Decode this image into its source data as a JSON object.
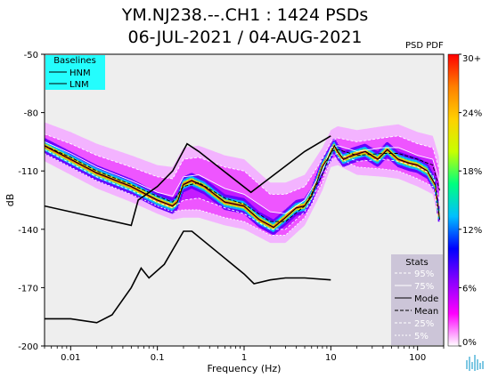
{
  "figure": {
    "title_line1": "YM.NJ238.--.CH1 : 1424 PSDs",
    "title_line2": "06-JUL-2021 / 04-AUG-2021",
    "colorbar_title": "PSD PDF"
  },
  "chart_data": {
    "type": "heatmap",
    "xlabel": "Frequency (Hz)",
    "ylabel": "dB",
    "x_scale": "log",
    "xlim": [
      0.005,
      200
    ],
    "ylim": [
      -200,
      -50
    ],
    "x_ticks": [
      {
        "value": 0.01,
        "label": "0.01"
      },
      {
        "value": 0.1,
        "label": "0.1"
      },
      {
        "value": 1,
        "label": "1"
      },
      {
        "value": 10,
        "label": "10"
      },
      {
        "value": 100,
        "label": "100"
      }
    ],
    "y_ticks": [
      {
        "value": -50,
        "label": "-50"
      },
      {
        "value": -80,
        "label": "-80"
      },
      {
        "value": -110,
        "label": "-110"
      },
      {
        "value": -140,
        "label": "-140"
      },
      {
        "value": -170,
        "label": "-170"
      },
      {
        "value": -200,
        "label": "-200"
      }
    ],
    "colorbar": {
      "range": [
        0,
        30
      ],
      "ticks": [
        "0%",
        "6%",
        "12%",
        "18%",
        "24%",
        "30+"
      ],
      "colors": [
        "#ffffff",
        "#ff00ff",
        "#8a00ff",
        "#0000ff",
        "#00bfff",
        "#00ff7f",
        "#c8ff00",
        "#ffd000",
        "#ff7f00",
        "#ff0000"
      ]
    },
    "baselines": {
      "title": "Baselines",
      "items": [
        "HNM",
        "LNM"
      ],
      "HNM": {
        "x": [
          0.005,
          0.05,
          0.06,
          0.1,
          0.15,
          0.22,
          0.3,
          1.2,
          5,
          10
        ],
        "y": [
          -128,
          -138,
          -125,
          -118,
          -110,
          -96,
          -100,
          -121,
          -100,
          -92
        ]
      },
      "LNM": {
        "x": [
          0.005,
          0.01,
          0.02,
          0.03,
          0.05,
          0.065,
          0.08,
          0.12,
          0.2,
          0.25,
          1,
          1.3,
          2,
          3,
          5,
          10
        ],
        "y": [
          -186,
          -186,
          -188,
          -184,
          -170,
          -160,
          -165,
          -158,
          -141,
          -141,
          -163,
          -168,
          -166,
          -165,
          -165,
          -166
        ]
      }
    },
    "stats": {
      "title": "Stats",
      "items": [
        "95%",
        "75%",
        "Mode",
        "Mean",
        "25%",
        "5%"
      ]
    },
    "pdf_mode_curve": {
      "x": [
        0.005,
        0.01,
        0.02,
        0.05,
        0.1,
        0.15,
        0.17,
        0.2,
        0.25,
        0.35,
        0.6,
        1,
        1.5,
        2.2,
        3,
        4,
        5,
        6,
        8,
        10,
        11,
        12,
        14,
        18,
        25,
        35,
        45,
        60,
        80,
        100,
        130,
        160,
        180
      ],
      "y": [
        -97,
        -104,
        -111,
        -118,
        -125,
        -128,
        -126,
        -117,
        -115,
        -118,
        -126,
        -128,
        -135,
        -139,
        -134,
        -129,
        -128,
        -123,
        -108,
        -101,
        -97,
        -100,
        -104,
        -102,
        -100,
        -104,
        -99,
        -104,
        -106,
        -107,
        -110,
        -117,
        -135
      ]
    },
    "percentile_curves": {
      "95%": {
        "x": [
          0.005,
          0.01,
          0.02,
          0.05,
          0.1,
          0.15,
          0.2,
          0.3,
          0.6,
          1,
          2,
          3,
          5,
          8,
          10,
          12,
          20,
          40,
          60,
          100,
          150,
          180
        ],
        "y": [
          -91,
          -96,
          -102,
          -108,
          -113,
          -114,
          -104,
          -103,
          -108,
          -110,
          -122,
          -122,
          -118,
          -104,
          -95,
          -93,
          -95,
          -93,
          -92,
          -96,
          -98,
          -110
        ]
      },
      "75%": {
        "x": [
          0.005,
          0.01,
          0.02,
          0.05,
          0.1,
          0.15,
          0.2,
          0.3,
          0.6,
          1,
          2,
          3,
          5,
          8,
          10,
          12,
          20,
          40,
          60,
          100,
          150,
          180
        ],
        "y": [
          -95,
          -101,
          -108,
          -115,
          -121,
          -123,
          -113,
          -112,
          -119,
          -122,
          -131,
          -132,
          -125,
          -110,
          -98,
          -97,
          -100,
          -98,
          -98,
          -102,
          -104,
          -116
        ]
      },
      "Mean": {
        "x": [
          0.005,
          0.01,
          0.02,
          0.05,
          0.1,
          0.15,
          0.2,
          0.3,
          0.6,
          1,
          2,
          3,
          5,
          8,
          10,
          12,
          20,
          40,
          60,
          100,
          150,
          180
        ],
        "y": [
          -97,
          -103,
          -110,
          -117,
          -123,
          -126,
          -118,
          -116,
          -124,
          -127,
          -136,
          -136,
          -128,
          -112,
          -100,
          -99,
          -102,
          -101,
          -101,
          -104,
          -107,
          -120
        ]
      },
      "25%": {
        "x": [
          0.005,
          0.01,
          0.02,
          0.05,
          0.1,
          0.15,
          0.2,
          0.3,
          0.6,
          1,
          2,
          3,
          5,
          8,
          10,
          12,
          20,
          40,
          60,
          100,
          150,
          180
        ],
        "y": [
          -99,
          -106,
          -113,
          -120,
          -126,
          -129,
          -125,
          -124,
          -129,
          -132,
          -140,
          -140,
          -131,
          -114,
          -102,
          -101,
          -105,
          -104,
          -105,
          -108,
          -112,
          -126
        ]
      },
      "5%": {
        "x": [
          0.005,
          0.01,
          0.02,
          0.05,
          0.1,
          0.15,
          0.2,
          0.3,
          0.6,
          1,
          2,
          3,
          5,
          8,
          10,
          12,
          20,
          40,
          60,
          100,
          150,
          180
        ],
        "y": [
          -101,
          -108,
          -115,
          -122,
          -128,
          -131,
          -130,
          -130,
          -134,
          -136,
          -143,
          -143,
          -134,
          -116,
          -104,
          -103,
          -108,
          -109,
          -110,
          -114,
          -118,
          -134
        ]
      }
    }
  }
}
